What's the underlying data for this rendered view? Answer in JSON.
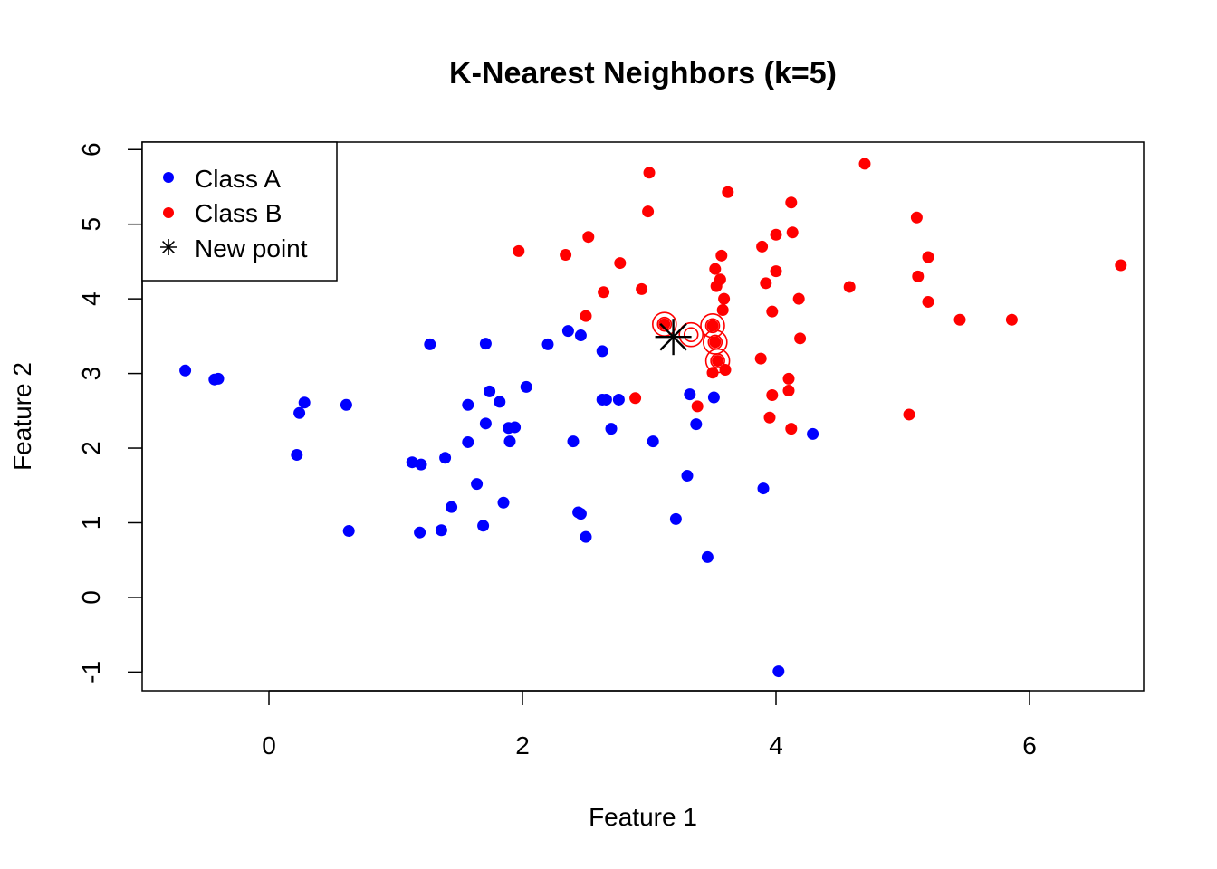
{
  "chart_data": {
    "type": "scatter",
    "title": "K-Nearest Neighbors (k=5)",
    "xlabel": "Feature 1",
    "ylabel": "Feature 2",
    "xlim": [
      -1.0,
      6.9
    ],
    "ylim": [
      -1.25,
      6.1
    ],
    "x_ticks": [
      0,
      2,
      4,
      6
    ],
    "y_ticks": [
      -1,
      0,
      1,
      2,
      3,
      4,
      5,
      6
    ],
    "x_tick_labels": [
      "0",
      "2",
      "4",
      "6"
    ],
    "y_tick_labels": [
      "-1",
      "0",
      "1",
      "2",
      "3",
      "4",
      "5",
      "6"
    ],
    "grid": false,
    "legend": {
      "position": "top-left",
      "entries": [
        {
          "label": "Class A",
          "marker": "dot",
          "color": "#0000ff"
        },
        {
          "label": "Class B",
          "marker": "dot",
          "color": "#ff0000"
        },
        {
          "label": "New point",
          "marker": "asterisk",
          "color": "#000000"
        }
      ]
    },
    "series": [
      {
        "name": "Class A",
        "color": "#0000ff",
        "points": [
          [
            -0.66,
            3.04
          ],
          [
            -0.43,
            2.92
          ],
          [
            -0.4,
            2.93
          ],
          [
            0.22,
            1.91
          ],
          [
            0.24,
            2.47
          ],
          [
            0.28,
            2.61
          ],
          [
            0.61,
            2.58
          ],
          [
            0.63,
            0.89
          ],
          [
            1.13,
            1.81
          ],
          [
            1.19,
            0.87
          ],
          [
            1.2,
            1.78
          ],
          [
            1.27,
            3.39
          ],
          [
            1.36,
            0.9
          ],
          [
            1.39,
            1.87
          ],
          [
            1.44,
            1.21
          ],
          [
            1.57,
            2.58
          ],
          [
            1.57,
            2.08
          ],
          [
            1.64,
            1.52
          ],
          [
            1.69,
            0.96
          ],
          [
            1.71,
            2.33
          ],
          [
            1.71,
            3.4
          ],
          [
            1.74,
            2.76
          ],
          [
            1.82,
            2.62
          ],
          [
            1.85,
            1.27
          ],
          [
            1.89,
            2.27
          ],
          [
            1.9,
            2.09
          ],
          [
            1.94,
            2.28
          ],
          [
            2.03,
            2.82
          ],
          [
            2.2,
            3.39
          ],
          [
            2.36,
            3.57
          ],
          [
            2.4,
            2.09
          ],
          [
            2.44,
            1.14
          ],
          [
            2.46,
            1.12
          ],
          [
            2.46,
            3.51
          ],
          [
            2.5,
            0.81
          ],
          [
            2.63,
            3.3
          ],
          [
            2.63,
            2.65
          ],
          [
            2.66,
            2.65
          ],
          [
            2.7,
            2.26
          ],
          [
            2.76,
            2.65
          ],
          [
            3.03,
            2.09
          ],
          [
            3.21,
            1.05
          ],
          [
            3.3,
            1.63
          ],
          [
            3.32,
            2.72
          ],
          [
            3.37,
            2.32
          ],
          [
            3.46,
            0.54
          ],
          [
            3.51,
            2.68
          ],
          [
            3.9,
            1.46
          ],
          [
            4.02,
            -0.99
          ],
          [
            4.29,
            2.19
          ]
        ]
      },
      {
        "name": "Class B",
        "color": "#ff0000",
        "points": [
          [
            1.97,
            4.64
          ],
          [
            2.34,
            4.59
          ],
          [
            2.5,
            3.77
          ],
          [
            2.52,
            4.83
          ],
          [
            2.64,
            4.09
          ],
          [
            2.77,
            4.48
          ],
          [
            2.89,
            2.67
          ],
          [
            2.94,
            4.13
          ],
          [
            2.99,
            5.17
          ],
          [
            3.0,
            5.69
          ],
          [
            3.12,
            3.66
          ],
          [
            3.38,
            2.56
          ],
          [
            3.5,
            3.64
          ],
          [
            3.5,
            3.01
          ],
          [
            3.52,
            4.4
          ],
          [
            3.52,
            3.42
          ],
          [
            3.53,
            4.17
          ],
          [
            3.54,
            3.17
          ],
          [
            3.56,
            4.26
          ],
          [
            3.57,
            4.58
          ],
          [
            3.58,
            3.85
          ],
          [
            3.59,
            4.0
          ],
          [
            3.6,
            3.05
          ],
          [
            3.62,
            5.43
          ],
          [
            3.88,
            3.2
          ],
          [
            3.89,
            4.7
          ],
          [
            3.92,
            4.21
          ],
          [
            3.95,
            2.41
          ],
          [
            3.97,
            3.83
          ],
          [
            3.97,
            2.71
          ],
          [
            4.0,
            4.86
          ],
          [
            4.0,
            4.37
          ],
          [
            4.1,
            2.93
          ],
          [
            4.1,
            2.77
          ],
          [
            4.12,
            5.29
          ],
          [
            4.12,
            2.26
          ],
          [
            4.13,
            4.89
          ],
          [
            4.18,
            4.0
          ],
          [
            4.19,
            3.47
          ],
          [
            4.58,
            4.16
          ],
          [
            4.7,
            5.81
          ],
          [
            5.05,
            2.45
          ],
          [
            5.11,
            5.09
          ],
          [
            5.12,
            4.3
          ],
          [
            5.2,
            4.56
          ],
          [
            5.2,
            3.96
          ],
          [
            5.45,
            3.72
          ],
          [
            5.86,
            3.72
          ],
          [
            6.72,
            4.45
          ]
        ]
      },
      {
        "name": "New point",
        "color": "#000000",
        "marker": "asterisk",
        "points": [
          [
            3.19,
            3.49
          ]
        ]
      }
    ],
    "neighbors": {
      "color": "#ff0000",
      "marker": "open-circle",
      "points": [
        [
          3.12,
          3.66
        ],
        [
          3.5,
          3.64
        ],
        [
          3.52,
          3.42
        ],
        [
          3.54,
          3.17
        ],
        [
          3.33,
          3.52
        ]
      ]
    }
  }
}
